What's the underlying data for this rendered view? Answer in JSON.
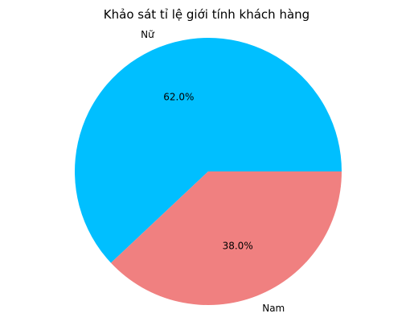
{
  "chart_data": {
    "type": "pie",
    "title": "Khảo sát tỉ lệ giới tính khách hàng",
    "categories": [
      "Nữ",
      "Nam"
    ],
    "values": [
      62.0,
      38.0
    ],
    "percent_labels": [
      "62.0%",
      "38.0%"
    ],
    "colors": [
      "#00bfff",
      "#f08080"
    ],
    "start_angle_deg": 0,
    "direction": "counterclockwise",
    "legend": "none"
  }
}
